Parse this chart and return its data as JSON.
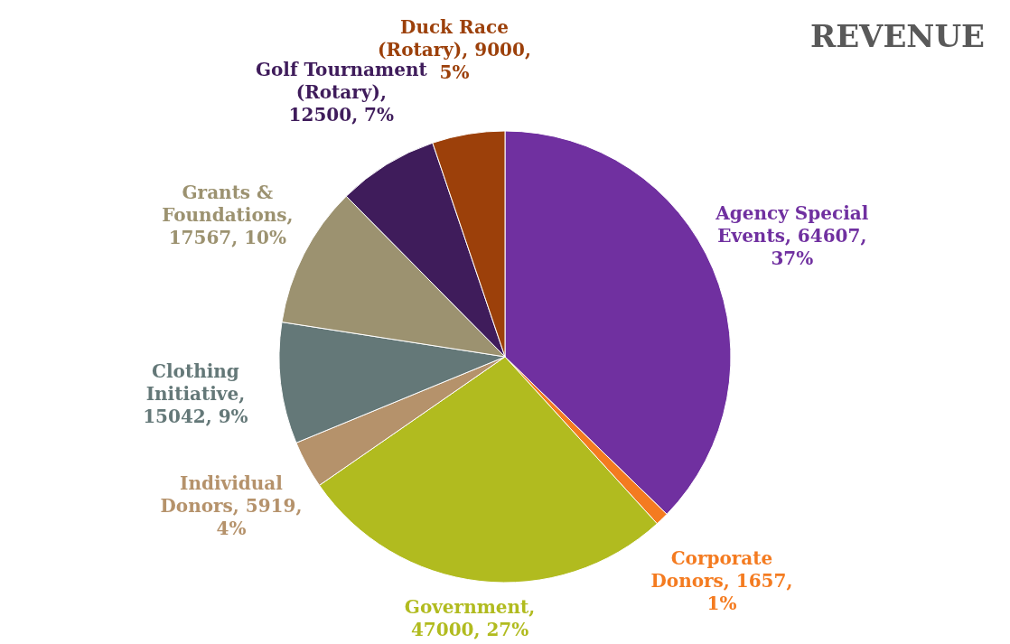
{
  "chart_data": {
    "type": "pie",
    "title": "REVENUE",
    "categories": [
      "Agency Special Events",
      "Corporate Donors",
      "Government",
      "Individual Donors",
      "Clothing Initiative",
      "Grants & Foundations",
      "Golf Tournament (Rotary)",
      "Duck Race (Rotary)"
    ],
    "values": [
      64607,
      1657,
      47000,
      5919,
      15042,
      17567,
      12500,
      9000
    ],
    "colors": [
      "#7030a0",
      "#f47b20",
      "#b1bb1f",
      "#b5926b",
      "#647878",
      "#9c9270",
      "#3f1c5b",
      "#9c400a"
    ],
    "value_labels": [
      ", 64607, 37%",
      ", 1657, 1%",
      ", 47000, 27%",
      ", 5919, 4%",
      ", 15042, 9%",
      ", 17567, 10%",
      ", 12500, 7%",
      ", 9000, 5%"
    ]
  }
}
